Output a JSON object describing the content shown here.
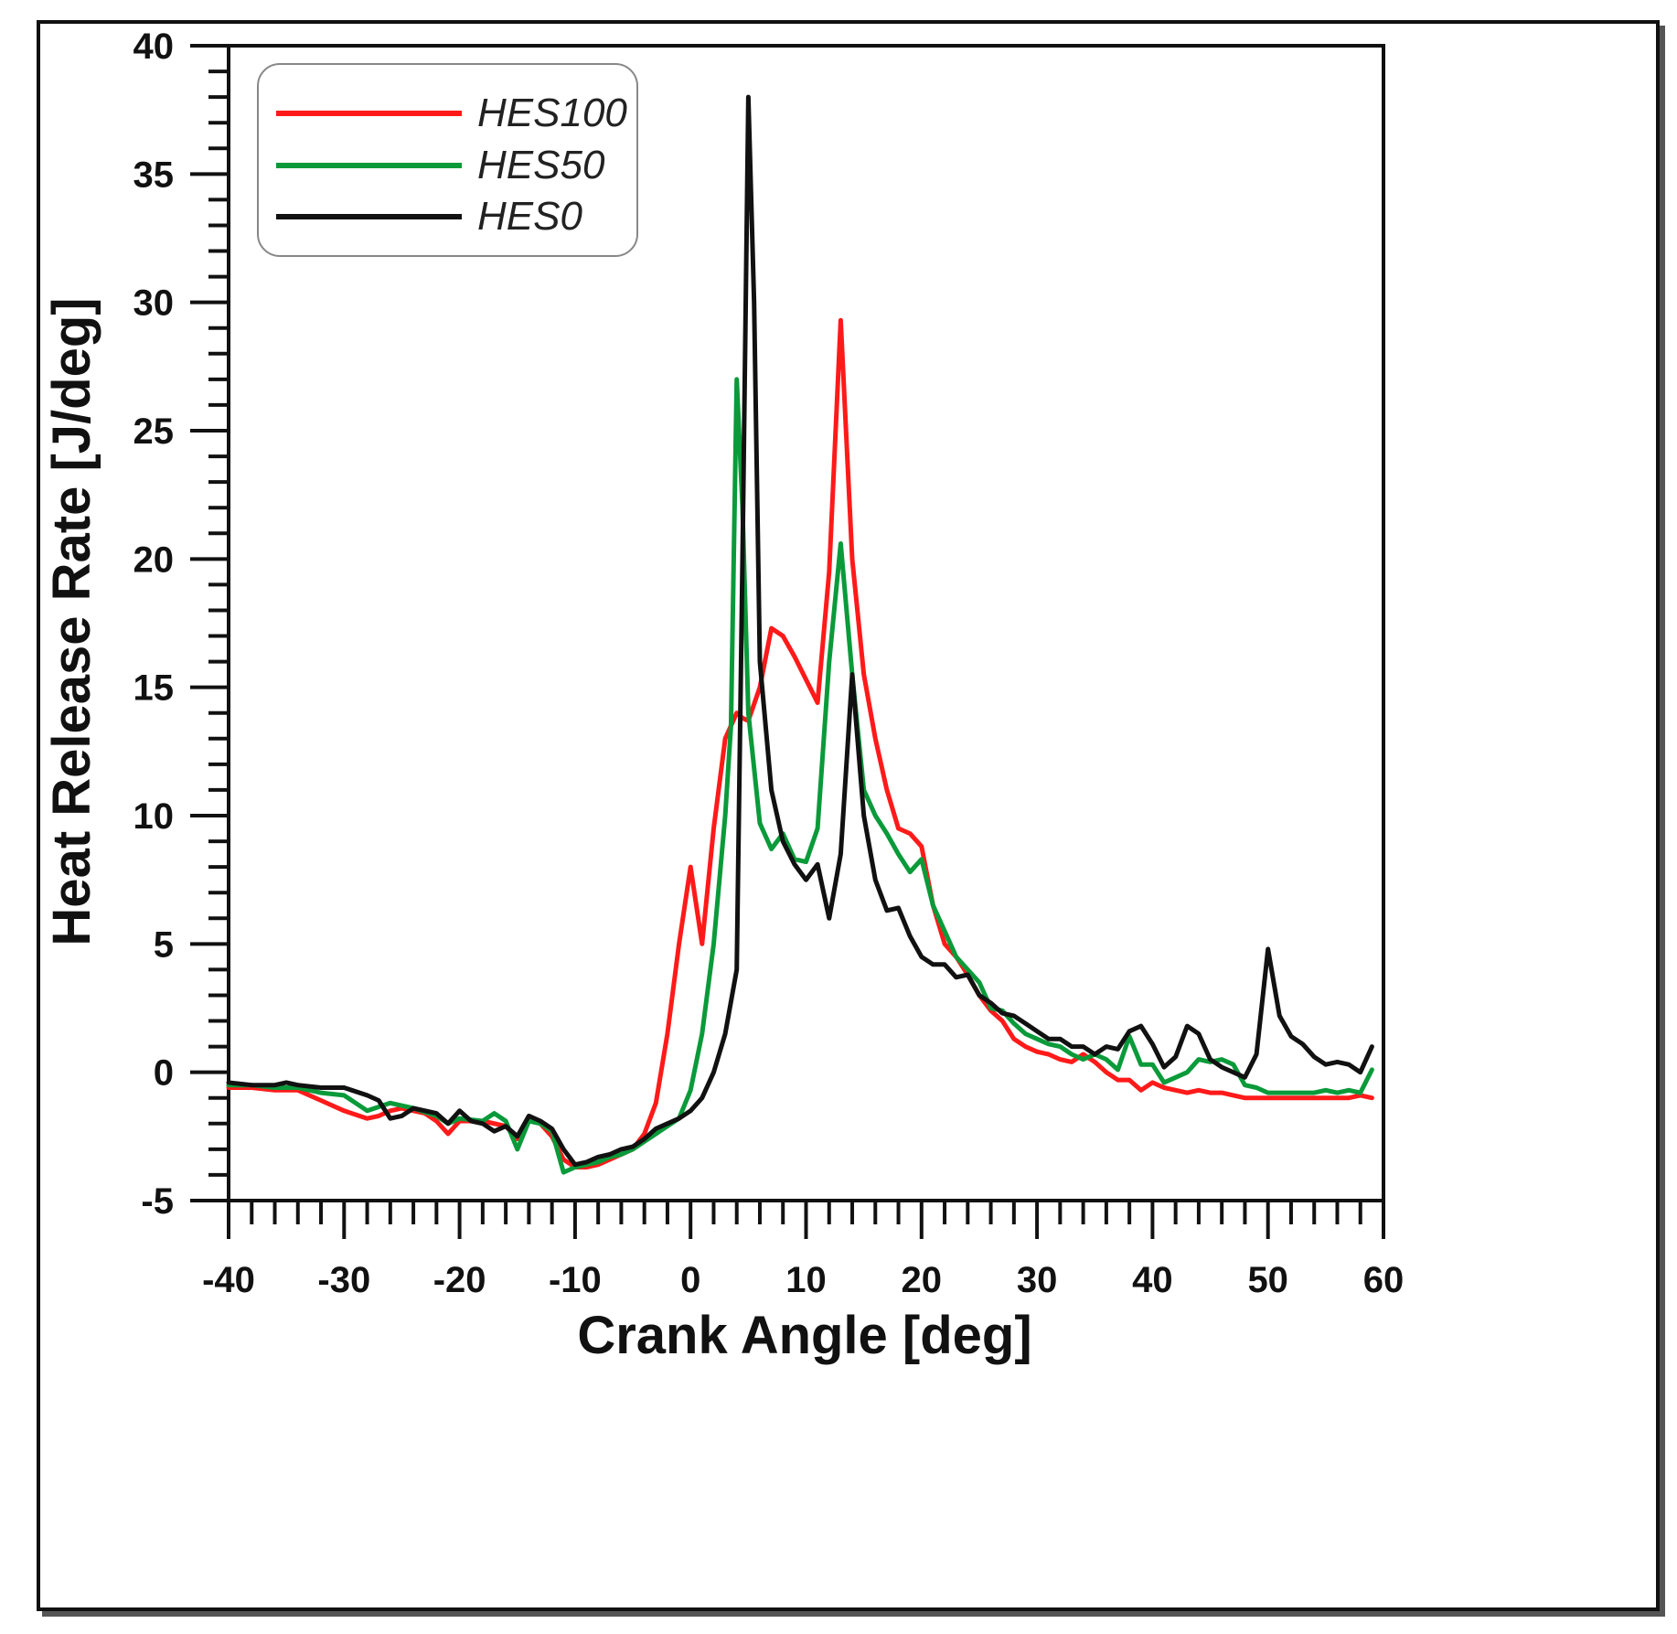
{
  "chart_data": {
    "type": "line",
    "title": "",
    "xlabel": "Crank Angle [deg]",
    "ylabel": "Heat Release Rate [J/deg]",
    "xlim": [
      -40,
      60
    ],
    "ylim": [
      -5,
      40
    ],
    "x_ticks": [
      -40,
      -30,
      -20,
      -10,
      0,
      10,
      20,
      30,
      40,
      50,
      60
    ],
    "y_ticks": [
      -5,
      0,
      5,
      10,
      15,
      20,
      25,
      30,
      35,
      40
    ],
    "x_minor_step": 2,
    "y_minor_step": 1,
    "grid": false,
    "legend_position": "top-left",
    "series": [
      {
        "name": "HES100",
        "color": "#ff1a1a",
        "points": [
          [
            -40,
            -0.6
          ],
          [
            -38,
            -0.6
          ],
          [
            -36,
            -0.7
          ],
          [
            -34,
            -0.7
          ],
          [
            -32,
            -1.1
          ],
          [
            -30,
            -1.5
          ],
          [
            -28,
            -1.8
          ],
          [
            -27,
            -1.7
          ],
          [
            -26,
            -1.5
          ],
          [
            -25,
            -1.4
          ],
          [
            -24,
            -1.5
          ],
          [
            -23,
            -1.6
          ],
          [
            -22,
            -1.9
          ],
          [
            -21,
            -2.4
          ],
          [
            -20,
            -1.9
          ],
          [
            -18,
            -1.9
          ],
          [
            -16,
            -2.1
          ],
          [
            -15,
            -2.6
          ],
          [
            -14,
            -1.8
          ],
          [
            -13,
            -2.0
          ],
          [
            -12,
            -2.5
          ],
          [
            -11,
            -3.4
          ],
          [
            -10,
            -3.7
          ],
          [
            -9,
            -3.7
          ],
          [
            -8,
            -3.6
          ],
          [
            -7,
            -3.4
          ],
          [
            -6,
            -3.2
          ],
          [
            -5,
            -3.0
          ],
          [
            -4,
            -2.4
          ],
          [
            -3,
            -1.2
          ],
          [
            -2,
            1.5
          ],
          [
            -1,
            5.0
          ],
          [
            0,
            8.0
          ],
          [
            1,
            5.0
          ],
          [
            2,
            9.5
          ],
          [
            3,
            13.0
          ],
          [
            4,
            14.0
          ],
          [
            4.5,
            13.8
          ],
          [
            5,
            13.7
          ],
          [
            6,
            15.0
          ],
          [
            7,
            17.3
          ],
          [
            8,
            17.0
          ],
          [
            9,
            16.2
          ],
          [
            10,
            15.3
          ],
          [
            11,
            14.4
          ],
          [
            12,
            19.5
          ],
          [
            13,
            29.3
          ],
          [
            14,
            20.0
          ],
          [
            15,
            15.5
          ],
          [
            16,
            13.0
          ],
          [
            17,
            11.0
          ],
          [
            18,
            9.5
          ],
          [
            19,
            9.3
          ],
          [
            20,
            8.8
          ],
          [
            21,
            6.5
          ],
          [
            22,
            5.0
          ],
          [
            23,
            4.5
          ],
          [
            24,
            3.8
          ],
          [
            25,
            3.0
          ],
          [
            26,
            2.4
          ],
          [
            27,
            2.0
          ],
          [
            28,
            1.3
          ],
          [
            29,
            1.0
          ],
          [
            30,
            0.8
          ],
          [
            31,
            0.7
          ],
          [
            32,
            0.5
          ],
          [
            33,
            0.4
          ],
          [
            34,
            0.7
          ],
          [
            35,
            0.4
          ],
          [
            36,
            0.0
          ],
          [
            37,
            -0.3
          ],
          [
            38,
            -0.3
          ],
          [
            39,
            -0.7
          ],
          [
            40,
            -0.4
          ],
          [
            41,
            -0.6
          ],
          [
            42,
            -0.7
          ],
          [
            43,
            -0.8
          ],
          [
            44,
            -0.7
          ],
          [
            45,
            -0.8
          ],
          [
            46,
            -0.8
          ],
          [
            47,
            -0.9
          ],
          [
            48,
            -1.0
          ],
          [
            49,
            -1.0
          ],
          [
            50,
            -1.0
          ],
          [
            51,
            -1.0
          ],
          [
            52,
            -1.0
          ],
          [
            53,
            -1.0
          ],
          [
            54,
            -1.0
          ],
          [
            55,
            -1.0
          ],
          [
            56,
            -1.0
          ],
          [
            57,
            -1.0
          ],
          [
            58,
            -0.9
          ],
          [
            59,
            -1.0
          ]
        ]
      },
      {
        "name": "HES50",
        "color": "#0a9a3a",
        "points": [
          [
            -40,
            -0.5
          ],
          [
            -38,
            -0.5
          ],
          [
            -36,
            -0.6
          ],
          [
            -34,
            -0.6
          ],
          [
            -32,
            -0.8
          ],
          [
            -30,
            -0.9
          ],
          [
            -28,
            -1.5
          ],
          [
            -26,
            -1.2
          ],
          [
            -24,
            -1.4
          ],
          [
            -22,
            -1.7
          ],
          [
            -21,
            -2.0
          ],
          [
            -20,
            -1.8
          ],
          [
            -18,
            -1.9
          ],
          [
            -17,
            -1.6
          ],
          [
            -16,
            -1.9
          ],
          [
            -15,
            -3.0
          ],
          [
            -14,
            -1.9
          ],
          [
            -13,
            -2.0
          ],
          [
            -12,
            -2.3
          ],
          [
            -11,
            -3.9
          ],
          [
            -10,
            -3.7
          ],
          [
            -9,
            -3.6
          ],
          [
            -8,
            -3.5
          ],
          [
            -7,
            -3.3
          ],
          [
            -6,
            -3.2
          ],
          [
            -5,
            -3.0
          ],
          [
            -4,
            -2.7
          ],
          [
            -3,
            -2.4
          ],
          [
            -2,
            -2.1
          ],
          [
            -1,
            -1.8
          ],
          [
            0,
            -0.7
          ],
          [
            1,
            1.5
          ],
          [
            2,
            5.0
          ],
          [
            3,
            10.0
          ],
          [
            3.5,
            13.5
          ],
          [
            4,
            27.0
          ],
          [
            4.5,
            22.0
          ],
          [
            5,
            14.0
          ],
          [
            6,
            9.7
          ],
          [
            7,
            8.7
          ],
          [
            8,
            9.3
          ],
          [
            9,
            8.3
          ],
          [
            10,
            8.2
          ],
          [
            11,
            9.5
          ],
          [
            12,
            16.0
          ],
          [
            13,
            20.6
          ],
          [
            14,
            15.5
          ],
          [
            15,
            11.0
          ],
          [
            16,
            10.0
          ],
          [
            17,
            9.3
          ],
          [
            18,
            8.5
          ],
          [
            19,
            7.8
          ],
          [
            20,
            8.3
          ],
          [
            21,
            6.5
          ],
          [
            22,
            5.5
          ],
          [
            23,
            4.5
          ],
          [
            24,
            4.0
          ],
          [
            25,
            3.5
          ],
          [
            26,
            2.5
          ],
          [
            27,
            2.4
          ],
          [
            28,
            1.9
          ],
          [
            29,
            1.5
          ],
          [
            30,
            1.3
          ],
          [
            31,
            1.1
          ],
          [
            32,
            1.0
          ],
          [
            33,
            0.7
          ],
          [
            34,
            0.5
          ],
          [
            35,
            0.7
          ],
          [
            36,
            0.5
          ],
          [
            37,
            0.1
          ],
          [
            38,
            1.4
          ],
          [
            39,
            0.3
          ],
          [
            40,
            0.3
          ],
          [
            41,
            -0.4
          ],
          [
            42,
            -0.2
          ],
          [
            43,
            0.0
          ],
          [
            44,
            0.5
          ],
          [
            45,
            0.4
          ],
          [
            46,
            0.5
          ],
          [
            47,
            0.3
          ],
          [
            48,
            -0.5
          ],
          [
            49,
            -0.6
          ],
          [
            50,
            -0.8
          ],
          [
            51,
            -0.8
          ],
          [
            52,
            -0.8
          ],
          [
            53,
            -0.8
          ],
          [
            54,
            -0.8
          ],
          [
            55,
            -0.7
          ],
          [
            56,
            -0.8
          ],
          [
            57,
            -0.7
          ],
          [
            58,
            -0.8
          ],
          [
            59,
            0.1
          ]
        ]
      },
      {
        "name": "HES0",
        "color": "#111111",
        "points": [
          [
            -40,
            -0.4
          ],
          [
            -38,
            -0.5
          ],
          [
            -36,
            -0.5
          ],
          [
            -35,
            -0.4
          ],
          [
            -34,
            -0.5
          ],
          [
            -32,
            -0.6
          ],
          [
            -30,
            -0.6
          ],
          [
            -28,
            -0.9
          ],
          [
            -27,
            -1.1
          ],
          [
            -26,
            -1.8
          ],
          [
            -25,
            -1.7
          ],
          [
            -24,
            -1.4
          ],
          [
            -22,
            -1.6
          ],
          [
            -21,
            -2.0
          ],
          [
            -20,
            -1.5
          ],
          [
            -19,
            -1.9
          ],
          [
            -18,
            -2.0
          ],
          [
            -17,
            -2.3
          ],
          [
            -16,
            -2.1
          ],
          [
            -15,
            -2.5
          ],
          [
            -14,
            -1.7
          ],
          [
            -13,
            -1.9
          ],
          [
            -12,
            -2.2
          ],
          [
            -11,
            -3.0
          ],
          [
            -10,
            -3.6
          ],
          [
            -9,
            -3.5
          ],
          [
            -8,
            -3.3
          ],
          [
            -7,
            -3.2
          ],
          [
            -6,
            -3.0
          ],
          [
            -5,
            -2.9
          ],
          [
            -4,
            -2.6
          ],
          [
            -3,
            -2.2
          ],
          [
            -2,
            -2.0
          ],
          [
            -1,
            -1.8
          ],
          [
            0,
            -1.5
          ],
          [
            1,
            -1.0
          ],
          [
            2,
            0.0
          ],
          [
            3,
            1.5
          ],
          [
            4,
            4.0
          ],
          [
            4.5,
            20.0
          ],
          [
            5,
            38.0
          ],
          [
            5.5,
            30.0
          ],
          [
            6,
            16.0
          ],
          [
            7,
            11.0
          ],
          [
            8,
            9.0
          ],
          [
            9,
            8.1
          ],
          [
            10,
            7.5
          ],
          [
            11,
            8.1
          ],
          [
            12,
            6.0
          ],
          [
            13,
            8.5
          ],
          [
            14,
            15.5
          ],
          [
            15,
            10.0
          ],
          [
            16,
            7.5
          ],
          [
            17,
            6.3
          ],
          [
            18,
            6.4
          ],
          [
            19,
            5.3
          ],
          [
            20,
            4.5
          ],
          [
            21,
            4.2
          ],
          [
            22,
            4.2
          ],
          [
            23,
            3.7
          ],
          [
            24,
            3.8
          ],
          [
            25,
            3.0
          ],
          [
            26,
            2.7
          ],
          [
            27,
            2.3
          ],
          [
            28,
            2.2
          ],
          [
            29,
            1.9
          ],
          [
            30,
            1.6
          ],
          [
            31,
            1.3
          ],
          [
            32,
            1.3
          ],
          [
            33,
            1.0
          ],
          [
            34,
            1.0
          ],
          [
            35,
            0.7
          ],
          [
            36,
            1.0
          ],
          [
            37,
            0.9
          ],
          [
            38,
            1.6
          ],
          [
            39,
            1.8
          ],
          [
            40,
            1.1
          ],
          [
            41,
            0.2
          ],
          [
            42,
            0.6
          ],
          [
            43,
            1.8
          ],
          [
            44,
            1.5
          ],
          [
            45,
            0.5
          ],
          [
            46,
            0.2
          ],
          [
            47,
            0.0
          ],
          [
            48,
            -0.2
          ],
          [
            49,
            0.7
          ],
          [
            50,
            4.8
          ],
          [
            51,
            2.2
          ],
          [
            52,
            1.4
          ],
          [
            53,
            1.1
          ],
          [
            54,
            0.6
          ],
          [
            55,
            0.3
          ],
          [
            56,
            0.4
          ],
          [
            57,
            0.3
          ],
          [
            58,
            0.0
          ],
          [
            59,
            1.0
          ]
        ]
      }
    ]
  }
}
